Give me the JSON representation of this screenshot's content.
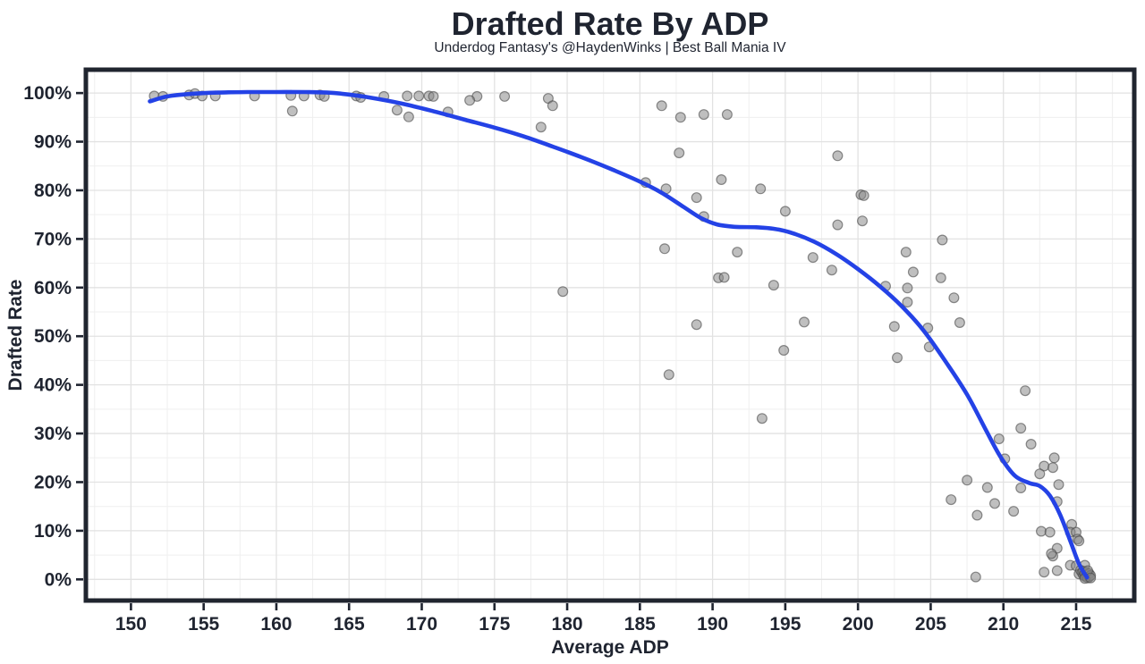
{
  "title": "Drafted Rate By ADP",
  "subtitle": "Underdog Fantasy's @HaydenWinks | Best Ball Mania IV",
  "colors": {
    "text": "#1f2430",
    "panel_border": "#20252f",
    "smooth_line": "#2442e6",
    "grid_major": "#e2e2e2",
    "grid_minor": "#efefef",
    "dot_fill": "#8a8a8a",
    "dot_stroke": "#474747",
    "background": "#ffffff"
  },
  "chart_data": {
    "type": "scatter",
    "title": "Drafted Rate By ADP",
    "subtitle": "Underdog Fantasy's @HaydenWinks | Best Ball Mania IV",
    "xlabel": "Average ADP",
    "ylabel": "Drafted Rate",
    "xlim": [
      146.9,
      219.0
    ],
    "ylim": [
      -4.35,
      104.8
    ],
    "x_ticks": [
      150,
      155,
      160,
      165,
      170,
      175,
      180,
      185,
      190,
      195,
      200,
      205,
      210,
      215
    ],
    "x_tick_labels": [
      "150",
      "155",
      "160",
      "165",
      "170",
      "175",
      "180",
      "185",
      "190",
      "195",
      "200",
      "205",
      "210",
      "215"
    ],
    "x_minor_ticks": [
      147.5,
      152.5,
      157.5,
      162.5,
      167.5,
      172.5,
      177.5,
      182.5,
      187.5,
      192.5,
      197.5,
      202.5,
      207.5,
      212.5,
      217.5
    ],
    "y_ticks": [
      0,
      10,
      20,
      30,
      40,
      50,
      60,
      70,
      80,
      90,
      100
    ],
    "y_tick_labels": [
      "0%",
      "10%",
      "20%",
      "30%",
      "40%",
      "50%",
      "60%",
      "70%",
      "80%",
      "90%",
      "100%"
    ],
    "y_minor_ticks": [
      5,
      15,
      25,
      35,
      45,
      55,
      65,
      75,
      85,
      95
    ],
    "grid": "major+minor",
    "legend": "none",
    "points": [
      [
        151.6,
        99.4
      ],
      [
        152.2,
        99.3
      ],
      [
        154.0,
        99.6
      ],
      [
        154.4,
        99.9
      ],
      [
        154.9,
        99.4
      ],
      [
        155.8,
        99.4
      ],
      [
        158.5,
        99.4
      ],
      [
        161.0,
        99.5
      ],
      [
        161.9,
        99.4
      ],
      [
        163.0,
        99.6
      ],
      [
        163.3,
        99.3
      ],
      [
        165.5,
        99.4
      ],
      [
        165.8,
        99.1
      ],
      [
        167.4,
        99.3
      ],
      [
        169.0,
        99.4
      ],
      [
        169.8,
        99.4
      ],
      [
        170.5,
        99.4
      ],
      [
        170.8,
        99.3
      ],
      [
        173.8,
        99.3
      ],
      [
        175.7,
        99.3
      ],
      [
        178.7,
        98.9
      ],
      [
        173.3,
        98.5
      ],
      [
        179.0,
        97.4
      ],
      [
        161.1,
        96.3
      ],
      [
        168.3,
        96.5
      ],
      [
        169.1,
        95.1
      ],
      [
        171.8,
        96.1
      ],
      [
        178.2,
        93.0
      ],
      [
        186.5,
        97.4
      ],
      [
        187.8,
        95.0
      ],
      [
        189.4,
        95.6
      ],
      [
        191.0,
        95.6
      ],
      [
        198.6,
        87.1
      ],
      [
        187.7,
        87.7
      ],
      [
        190.6,
        82.2
      ],
      [
        185.4,
        81.6
      ],
      [
        193.3,
        80.3
      ],
      [
        186.8,
        80.3
      ],
      [
        200.2,
        79.1
      ],
      [
        200.4,
        78.9
      ],
      [
        188.9,
        78.5
      ],
      [
        195.0,
        75.7
      ],
      [
        189.4,
        74.6
      ],
      [
        200.3,
        73.7
      ],
      [
        198.6,
        72.9
      ],
      [
        205.8,
        69.8
      ],
      [
        191.7,
        67.3
      ],
      [
        203.3,
        67.3
      ],
      [
        186.7,
        68.0
      ],
      [
        196.9,
        66.2
      ],
      [
        198.2,
        63.6
      ],
      [
        203.8,
        63.2
      ],
      [
        190.4,
        62.0
      ],
      [
        190.8,
        62.1
      ],
      [
        205.7,
        62.0
      ],
      [
        201.9,
        60.3
      ],
      [
        194.2,
        60.5
      ],
      [
        179.7,
        59.2
      ],
      [
        203.4,
        59.9
      ],
      [
        203.4,
        57.0
      ],
      [
        206.6,
        57.9
      ],
      [
        196.3,
        52.9
      ],
      [
        207.0,
        52.8
      ],
      [
        188.9,
        52.4
      ],
      [
        202.5,
        52.0
      ],
      [
        204.8,
        51.7
      ],
      [
        204.9,
        47.8
      ],
      [
        194.9,
        47.1
      ],
      [
        202.7,
        45.6
      ],
      [
        187.0,
        42.1
      ],
      [
        211.5,
        38.8
      ],
      [
        193.4,
        33.1
      ],
      [
        211.2,
        31.1
      ],
      [
        209.7,
        28.9
      ],
      [
        211.9,
        27.8
      ],
      [
        213.5,
        25.0
      ],
      [
        210.1,
        24.8
      ],
      [
        212.8,
        23.3
      ],
      [
        213.4,
        23.0
      ],
      [
        212.5,
        21.7
      ],
      [
        207.5,
        20.4
      ],
      [
        213.8,
        19.5
      ],
      [
        211.2,
        18.8
      ],
      [
        208.9,
        18.9
      ],
      [
        206.4,
        16.4
      ],
      [
        213.7,
        16.0
      ],
      [
        209.4,
        15.6
      ],
      [
        210.7,
        14.0
      ],
      [
        208.2,
        13.2
      ],
      [
        214.7,
        11.3
      ],
      [
        212.6,
        9.9
      ],
      [
        213.2,
        9.7
      ],
      [
        214.6,
        9.7
      ],
      [
        215.0,
        9.7
      ],
      [
        215.1,
        8.3
      ],
      [
        215.2,
        7.9
      ],
      [
        213.7,
        6.4
      ],
      [
        213.4,
        4.8
      ],
      [
        213.3,
        5.3
      ],
      [
        214.6,
        2.9
      ],
      [
        215.0,
        2.8
      ],
      [
        215.6,
        2.9
      ],
      [
        213.7,
        1.8
      ],
      [
        212.8,
        1.5
      ],
      [
        215.2,
        1.1
      ],
      [
        215.6,
        0.6
      ],
      [
        208.1,
        0.5
      ],
      [
        215.3,
        1.9
      ],
      [
        215.4,
        1.4
      ],
      [
        215.5,
        0.9
      ],
      [
        215.5,
        1.7
      ],
      [
        215.6,
        1.2
      ],
      [
        215.7,
        0.6
      ],
      [
        215.7,
        1.5
      ],
      [
        215.8,
        0.9
      ],
      [
        215.8,
        0.3
      ],
      [
        215.9,
        1.2
      ],
      [
        215.9,
        0.5
      ],
      [
        216.0,
        0.8
      ],
      [
        215.6,
        0.2
      ],
      [
        215.8,
        1.8
      ],
      [
        216.0,
        0.3
      ]
    ],
    "smooth_line": [
      [
        151.3,
        98.3
      ],
      [
        152.5,
        99.3
      ],
      [
        154.0,
        99.8
      ],
      [
        156.0,
        100.1
      ],
      [
        158.0,
        100.2
      ],
      [
        160.0,
        100.2
      ],
      [
        162.0,
        100.2
      ],
      [
        163.5,
        100.1
      ],
      [
        165.0,
        99.7
      ],
      [
        167.0,
        98.8
      ],
      [
        169.0,
        97.6
      ],
      [
        171.0,
        96.1
      ],
      [
        173.0,
        94.5
      ],
      [
        175.0,
        92.9
      ],
      [
        177.0,
        91.1
      ],
      [
        179.0,
        89.0
      ],
      [
        181.0,
        86.8
      ],
      [
        183.0,
        84.4
      ],
      [
        185.0,
        81.8
      ],
      [
        186.5,
        79.5
      ],
      [
        188.0,
        76.6
      ],
      [
        189.2,
        74.3
      ],
      [
        190.3,
        73.0
      ],
      [
        191.5,
        72.5
      ],
      [
        193.0,
        72.4
      ],
      [
        194.2,
        72.1
      ],
      [
        195.5,
        71.2
      ],
      [
        197.0,
        69.4
      ],
      [
        198.5,
        66.9
      ],
      [
        200.0,
        63.8
      ],
      [
        201.5,
        60.3
      ],
      [
        203.0,
        56.2
      ],
      [
        204.5,
        51.2
      ],
      [
        206.0,
        44.9
      ],
      [
        207.5,
        38.0
      ],
      [
        208.8,
        30.7
      ],
      [
        209.8,
        25.2
      ],
      [
        210.8,
        21.3
      ],
      [
        211.8,
        19.8
      ],
      [
        212.5,
        19.2
      ],
      [
        213.2,
        17.2
      ],
      [
        213.9,
        13.3
      ],
      [
        214.6,
        7.9
      ],
      [
        215.2,
        3.2
      ],
      [
        215.75,
        0.4
      ]
    ]
  }
}
